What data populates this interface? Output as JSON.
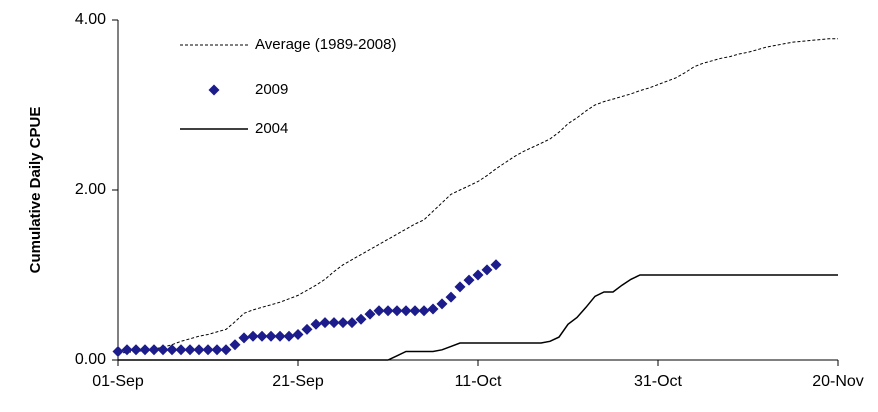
{
  "chart_data": {
    "type": "line",
    "y_label": "Cumulative Daily CPUE",
    "x": [
      "01-Sep",
      "02-Sep",
      "03-Sep",
      "04-Sep",
      "05-Sep",
      "06-Sep",
      "07-Sep",
      "08-Sep",
      "09-Sep",
      "10-Sep",
      "11-Sep",
      "12-Sep",
      "13-Sep",
      "14-Sep",
      "15-Sep",
      "16-Sep",
      "17-Sep",
      "18-Sep",
      "19-Sep",
      "20-Sep",
      "21-Sep",
      "22-Sep",
      "23-Sep",
      "24-Sep",
      "25-Sep",
      "26-Sep",
      "27-Sep",
      "28-Sep",
      "29-Sep",
      "30-Sep",
      "01-Oct",
      "02-Oct",
      "03-Oct",
      "04-Oct",
      "05-Oct",
      "06-Oct",
      "07-Oct",
      "08-Oct",
      "09-Oct",
      "10-Oct",
      "11-Oct",
      "12-Oct",
      "13-Oct",
      "14-Oct",
      "15-Oct",
      "16-Oct",
      "17-Oct",
      "18-Oct",
      "19-Oct",
      "20-Oct",
      "21-Oct",
      "22-Oct",
      "23-Oct",
      "24-Oct",
      "25-Oct",
      "26-Oct",
      "27-Oct",
      "28-Oct",
      "29-Oct",
      "30-Oct",
      "31-Oct",
      "01-Nov",
      "02-Nov",
      "03-Nov",
      "04-Nov",
      "05-Nov",
      "06-Nov",
      "07-Nov",
      "08-Nov",
      "09-Nov",
      "10-Nov",
      "11-Nov",
      "12-Nov",
      "13-Nov",
      "14-Nov",
      "15-Nov",
      "16-Nov",
      "17-Nov",
      "18-Nov",
      "19-Nov",
      "20-Nov"
    ],
    "xticks": [
      "01-Sep",
      "21-Sep",
      "11-Oct",
      "31-Oct",
      "20-Nov"
    ],
    "ylim": [
      0,
      4
    ],
    "yticks": [
      {
        "value": 0,
        "label": "0.00"
      },
      {
        "value": 2,
        "label": "2.00"
      },
      {
        "value": 4,
        "label": "4.00"
      }
    ],
    "legend": "upper left",
    "series": [
      {
        "name": "Average (1989-2008)",
        "color": "#000000",
        "style": "dashed",
        "values": [
          0.08,
          0.09,
          0.1,
          0.11,
          0.13,
          0.15,
          0.18,
          0.22,
          0.25,
          0.28,
          0.3,
          0.33,
          0.36,
          0.45,
          0.55,
          0.59,
          0.62,
          0.65,
          0.68,
          0.72,
          0.76,
          0.82,
          0.88,
          0.95,
          1.04,
          1.12,
          1.18,
          1.24,
          1.3,
          1.36,
          1.42,
          1.48,
          1.54,
          1.6,
          1.65,
          1.75,
          1.85,
          1.95,
          2.0,
          2.05,
          2.1,
          2.17,
          2.25,
          2.32,
          2.39,
          2.45,
          2.5,
          2.55,
          2.6,
          2.68,
          2.78,
          2.85,
          2.93,
          3.0,
          3.04,
          3.07,
          3.1,
          3.13,
          3.17,
          3.2,
          3.24,
          3.28,
          3.32,
          3.38,
          3.45,
          3.49,
          3.52,
          3.55,
          3.57,
          3.6,
          3.62,
          3.65,
          3.68,
          3.7,
          3.72,
          3.74,
          3.75,
          3.76,
          3.77,
          3.78,
          3.78
        ]
      },
      {
        "name": "2009",
        "color": "#1c1c8c",
        "style": "diamond",
        "values": [
          0.1,
          0.12,
          0.12,
          0.12,
          0.12,
          0.12,
          0.12,
          0.12,
          0.12,
          0.12,
          0.12,
          0.12,
          0.12,
          0.18,
          0.26,
          0.28,
          0.28,
          0.28,
          0.28,
          0.28,
          0.3,
          0.36,
          0.42,
          0.44,
          0.44,
          0.44,
          0.44,
          0.48,
          0.54,
          0.58,
          0.58,
          0.58,
          0.58,
          0.58,
          0.58,
          0.6,
          0.66,
          0.74,
          0.86,
          0.94,
          1.0,
          1.06,
          1.12,
          null,
          null,
          null,
          null,
          null,
          null,
          null,
          null,
          null,
          null,
          null,
          null,
          null,
          null,
          null,
          null,
          null,
          null,
          null,
          null,
          null,
          null,
          null,
          null,
          null,
          null,
          null,
          null,
          null,
          null,
          null,
          null,
          null,
          null,
          null,
          null,
          null,
          null
        ]
      },
      {
        "name": "2004",
        "color": "#000000",
        "style": "solid",
        "values": [
          0,
          0,
          0,
          0,
          0,
          0,
          0,
          0,
          0,
          0,
          0,
          0,
          0,
          0,
          0,
          0,
          0,
          0,
          0,
          0,
          0,
          0,
          0,
          0,
          0,
          0,
          0,
          0,
          0,
          0,
          0,
          0.05,
          0.1,
          0.1,
          0.1,
          0.1,
          0.12,
          0.16,
          0.2,
          0.2,
          0.2,
          0.2,
          0.2,
          0.2,
          0.2,
          0.2,
          0.2,
          0.2,
          0.22,
          0.27,
          0.42,
          0.5,
          0.62,
          0.75,
          0.8,
          0.8,
          0.88,
          0.95,
          1.0,
          1.0,
          1.0,
          1.0,
          1.0,
          1.0,
          1.0,
          1.0,
          1.0,
          1.0,
          1.0,
          1.0,
          1.0,
          1.0,
          1.0,
          1.0,
          1.0,
          1.0,
          1.0,
          1.0,
          1.0,
          1.0,
          1.0
        ]
      }
    ]
  }
}
